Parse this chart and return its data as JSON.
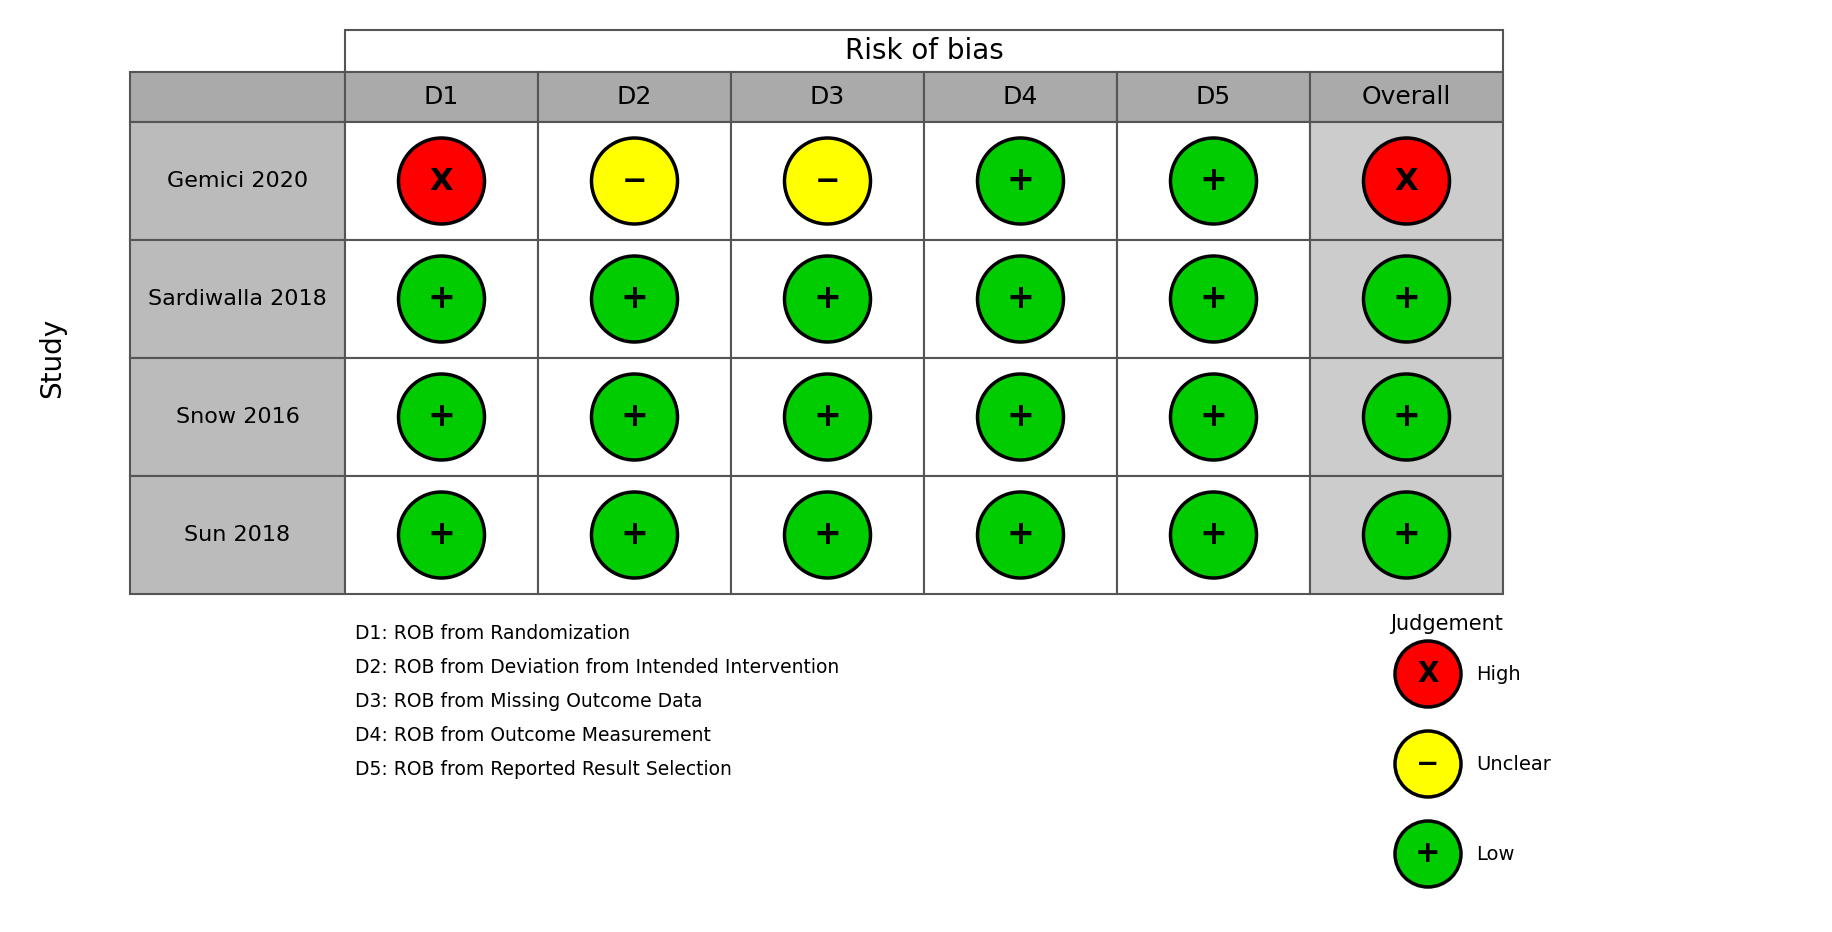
{
  "title": "Risk of bias",
  "ylabel": "Study",
  "columns": [
    "D1",
    "D2",
    "D3",
    "D4",
    "D5",
    "Overall"
  ],
  "rows": [
    "Gemici 2020",
    "Sardiwalla 2018",
    "Snow 2016",
    "Sun 2018"
  ],
  "data": [
    [
      "high",
      "unclear",
      "unclear",
      "low",
      "low",
      "high"
    ],
    [
      "low",
      "low",
      "low",
      "low",
      "low",
      "low"
    ],
    [
      "low",
      "low",
      "low",
      "low",
      "low",
      "low"
    ],
    [
      "low",
      "low",
      "low",
      "low",
      "low",
      "low"
    ]
  ],
  "colors": {
    "high": "#FF0000",
    "unclear": "#FFFF00",
    "low": "#00CC00"
  },
  "symbols": {
    "high": "X",
    "unclear": "−",
    "low": "+"
  },
  "header_bg": "#AAAAAA",
  "study_cell_bg": "#BBBBBB",
  "data_cell_bg": "#FFFFFF",
  "overall_cell_bg": "#CCCCCC",
  "grid_color": "#555555",
  "legend_title": "Judgement",
  "legend_items": [
    "high",
    "unclear",
    "low"
  ],
  "legend_labels": [
    "High",
    "Unclear",
    "Low"
  ],
  "footnotes": [
    "D1: ROB from Randomization",
    "D2: ROB from Deviation from Intended Intervention",
    "D3: ROB from Missing Outcome Data",
    "D4: ROB from Outcome Measurement",
    "D5: ROB from Reported Result Selection"
  ]
}
